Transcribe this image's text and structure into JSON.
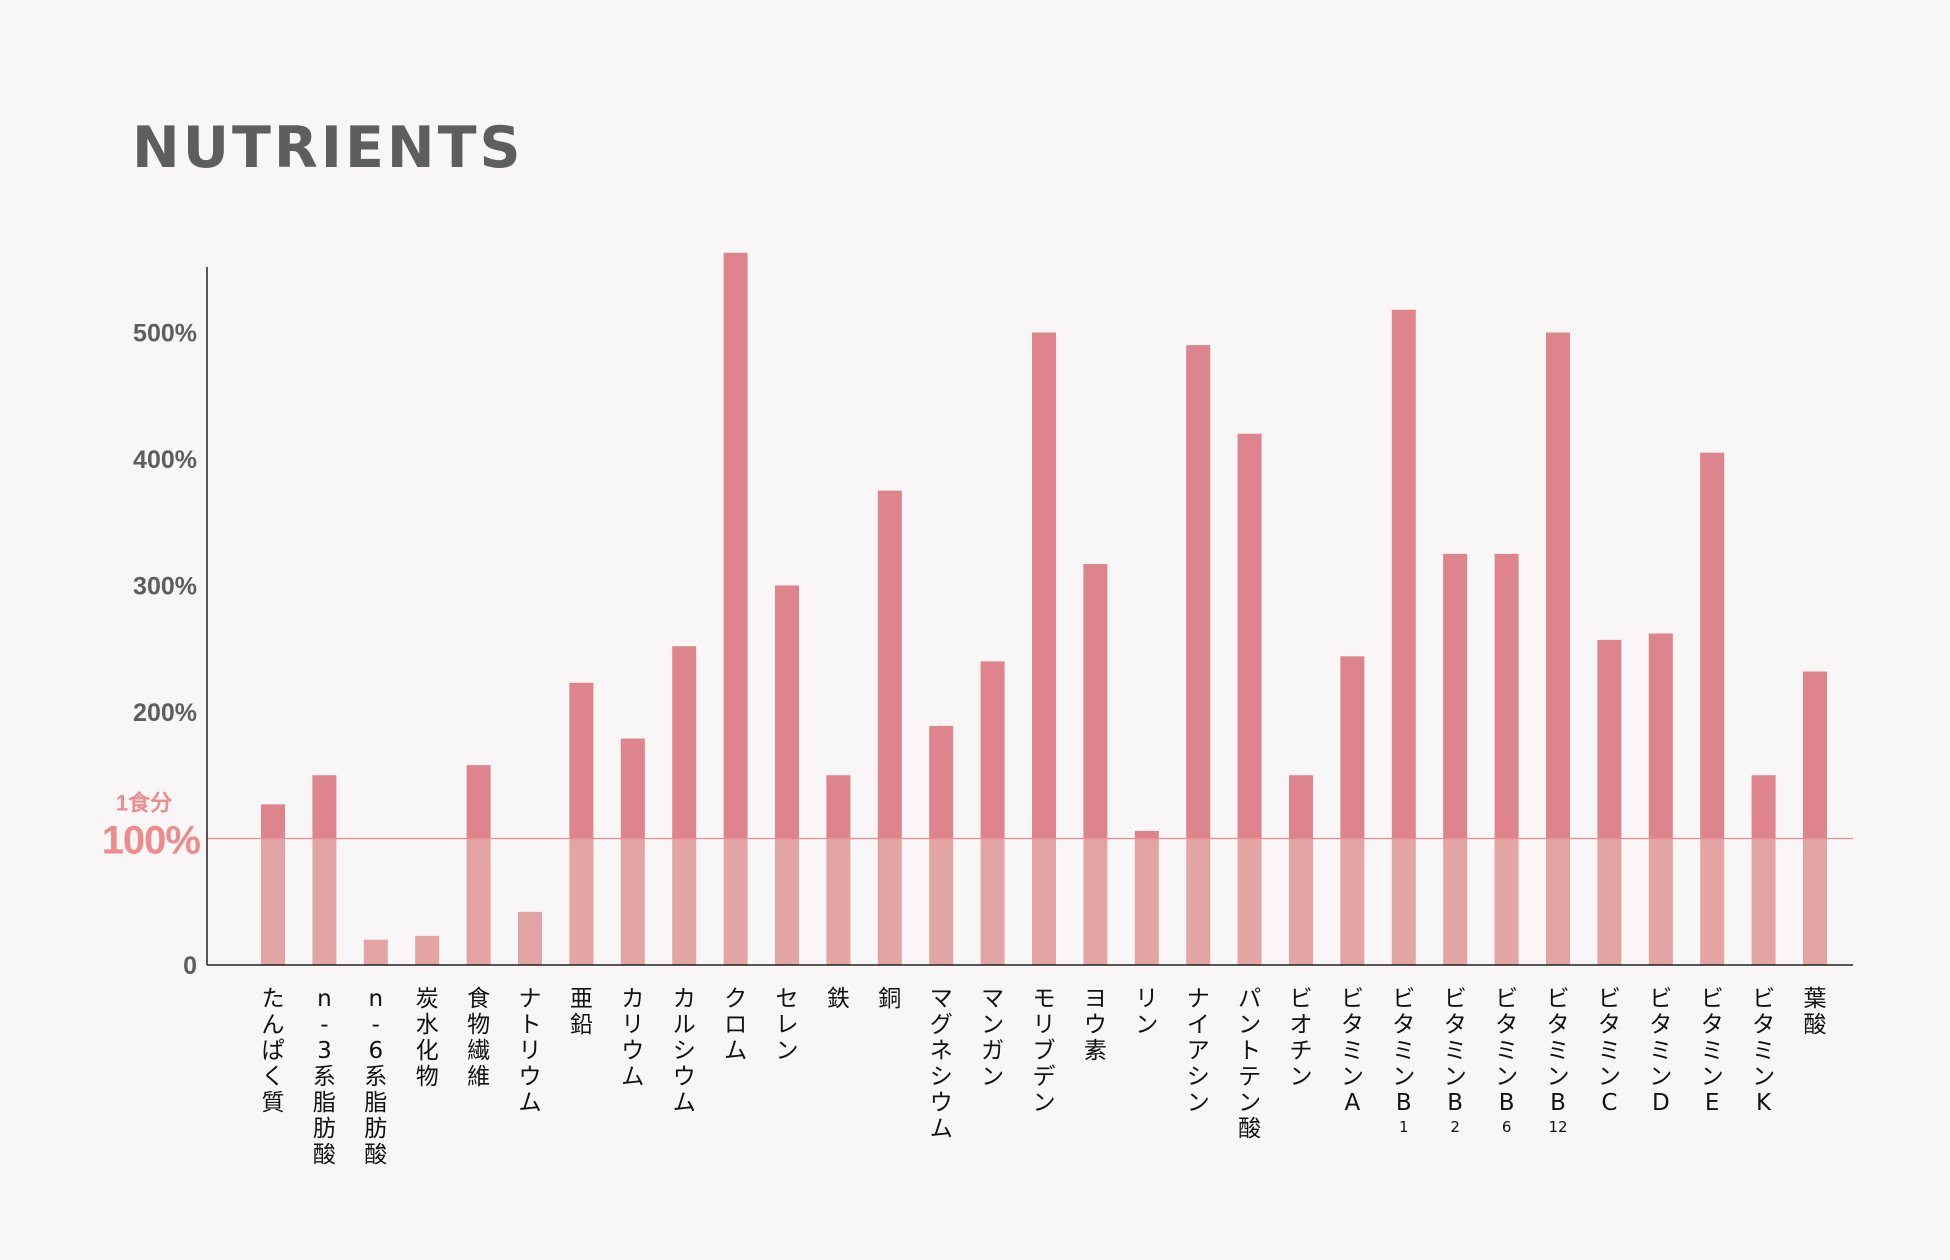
{
  "colors": {
    "background": "#f8f6f6",
    "bar_upper": "#dd848c",
    "bar_lower": "#e3a4a4",
    "reference": "#ec8c8c",
    "axis": "#222222",
    "text_gray": "#5e5e5e",
    "label": "#111111"
  },
  "chart_data": {
    "type": "bar",
    "title": "NUTRIENTS",
    "ylim": [
      0,
      550
    ],
    "yticks": [
      {
        "value": 0,
        "label": "0"
      },
      {
        "value": 200,
        "label": "200%"
      },
      {
        "value": 300,
        "label": "300%"
      },
      {
        "value": 400,
        "label": "400%"
      },
      {
        "value": 500,
        "label": "500%"
      }
    ],
    "reference": {
      "value": 100,
      "label_top": "1食分",
      "label_main": "100%"
    },
    "categories": [
      {
        "name": "たんぱく質",
        "value": 127
      },
      {
        "name": "n-3系脂肪酸",
        "value": 150
      },
      {
        "name": "n-6系脂肪酸",
        "value": 20
      },
      {
        "name": "炭水化物",
        "value": 23
      },
      {
        "name": "食物繊維",
        "value": 158
      },
      {
        "name": "ナトリウム",
        "value": 42
      },
      {
        "name": "亜鉛",
        "value": 223
      },
      {
        "name": "カリウム",
        "value": 179
      },
      {
        "name": "カルシウム",
        "value": 252
      },
      {
        "name": "クロム",
        "value": 563
      },
      {
        "name": "セレン",
        "value": 300
      },
      {
        "name": "鉄",
        "value": 150
      },
      {
        "name": "銅",
        "value": 375
      },
      {
        "name": "マグネシウム",
        "value": 189
      },
      {
        "name": "マンガン",
        "value": 240
      },
      {
        "name": "モリブデン",
        "value": 500
      },
      {
        "name": "ヨウ素",
        "value": 317
      },
      {
        "name": "リン",
        "value": 106
      },
      {
        "name": "ナイアシン",
        "value": 490
      },
      {
        "name": "パントテン酸",
        "value": 420
      },
      {
        "name": "ビオチン",
        "value": 150
      },
      {
        "name": "ビタミンA",
        "value": 244
      },
      {
        "name": "ビタミンB",
        "sub": "1",
        "value": 518
      },
      {
        "name": "ビタミンB",
        "sub": "2",
        "value": 325
      },
      {
        "name": "ビタミンB",
        "sub": "6",
        "value": 325
      },
      {
        "name": "ビタミンB",
        "sub": "12",
        "value": 500
      },
      {
        "name": "ビタミンC",
        "value": 257
      },
      {
        "name": "ビタミンD",
        "value": 262
      },
      {
        "name": "ビタミンE",
        "value": 405
      },
      {
        "name": "ビタミンK",
        "value": 150
      },
      {
        "name": "葉酸",
        "value": 232
      }
    ]
  }
}
